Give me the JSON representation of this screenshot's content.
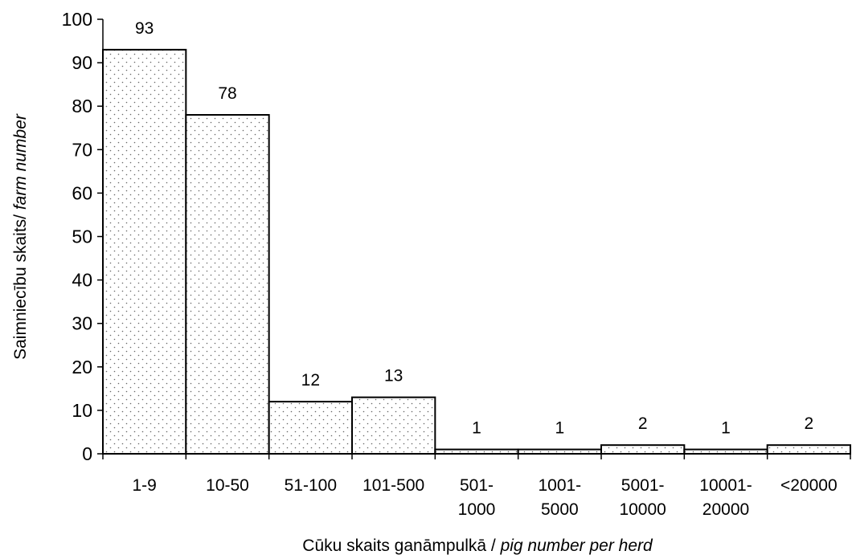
{
  "chart_data": {
    "type": "bar",
    "categories": [
      [
        "1-9"
      ],
      [
        "10-50"
      ],
      [
        "51-100"
      ],
      [
        "101-500"
      ],
      [
        "501-",
        "1000"
      ],
      [
        "1001-",
        "5000"
      ],
      [
        "5001-",
        "10000"
      ],
      [
        "10001-",
        "20000"
      ],
      [
        "<20000"
      ]
    ],
    "values": [
      93,
      78,
      12,
      13,
      1,
      1,
      2,
      1,
      2
    ],
    "data_labels": [
      "93",
      "78",
      "12",
      "13",
      "1",
      "1",
      "2",
      "1",
      "2"
    ],
    "ylim": [
      0,
      100
    ],
    "yticks": [
      0,
      10,
      20,
      30,
      40,
      50,
      60,
      70,
      80,
      90,
      100
    ],
    "xlabel": {
      "plain": "Cūku skaits ganāmpulkā / ",
      "italic": "pig number per herd"
    },
    "ylabel": {
      "plain": "Saimniecību skaits/ ",
      "italic": "farm number"
    },
    "bar_fill": "dotted",
    "bar_color": "#ffffff",
    "bar_stroke": "#000000",
    "grid": false,
    "legend": "none"
  }
}
